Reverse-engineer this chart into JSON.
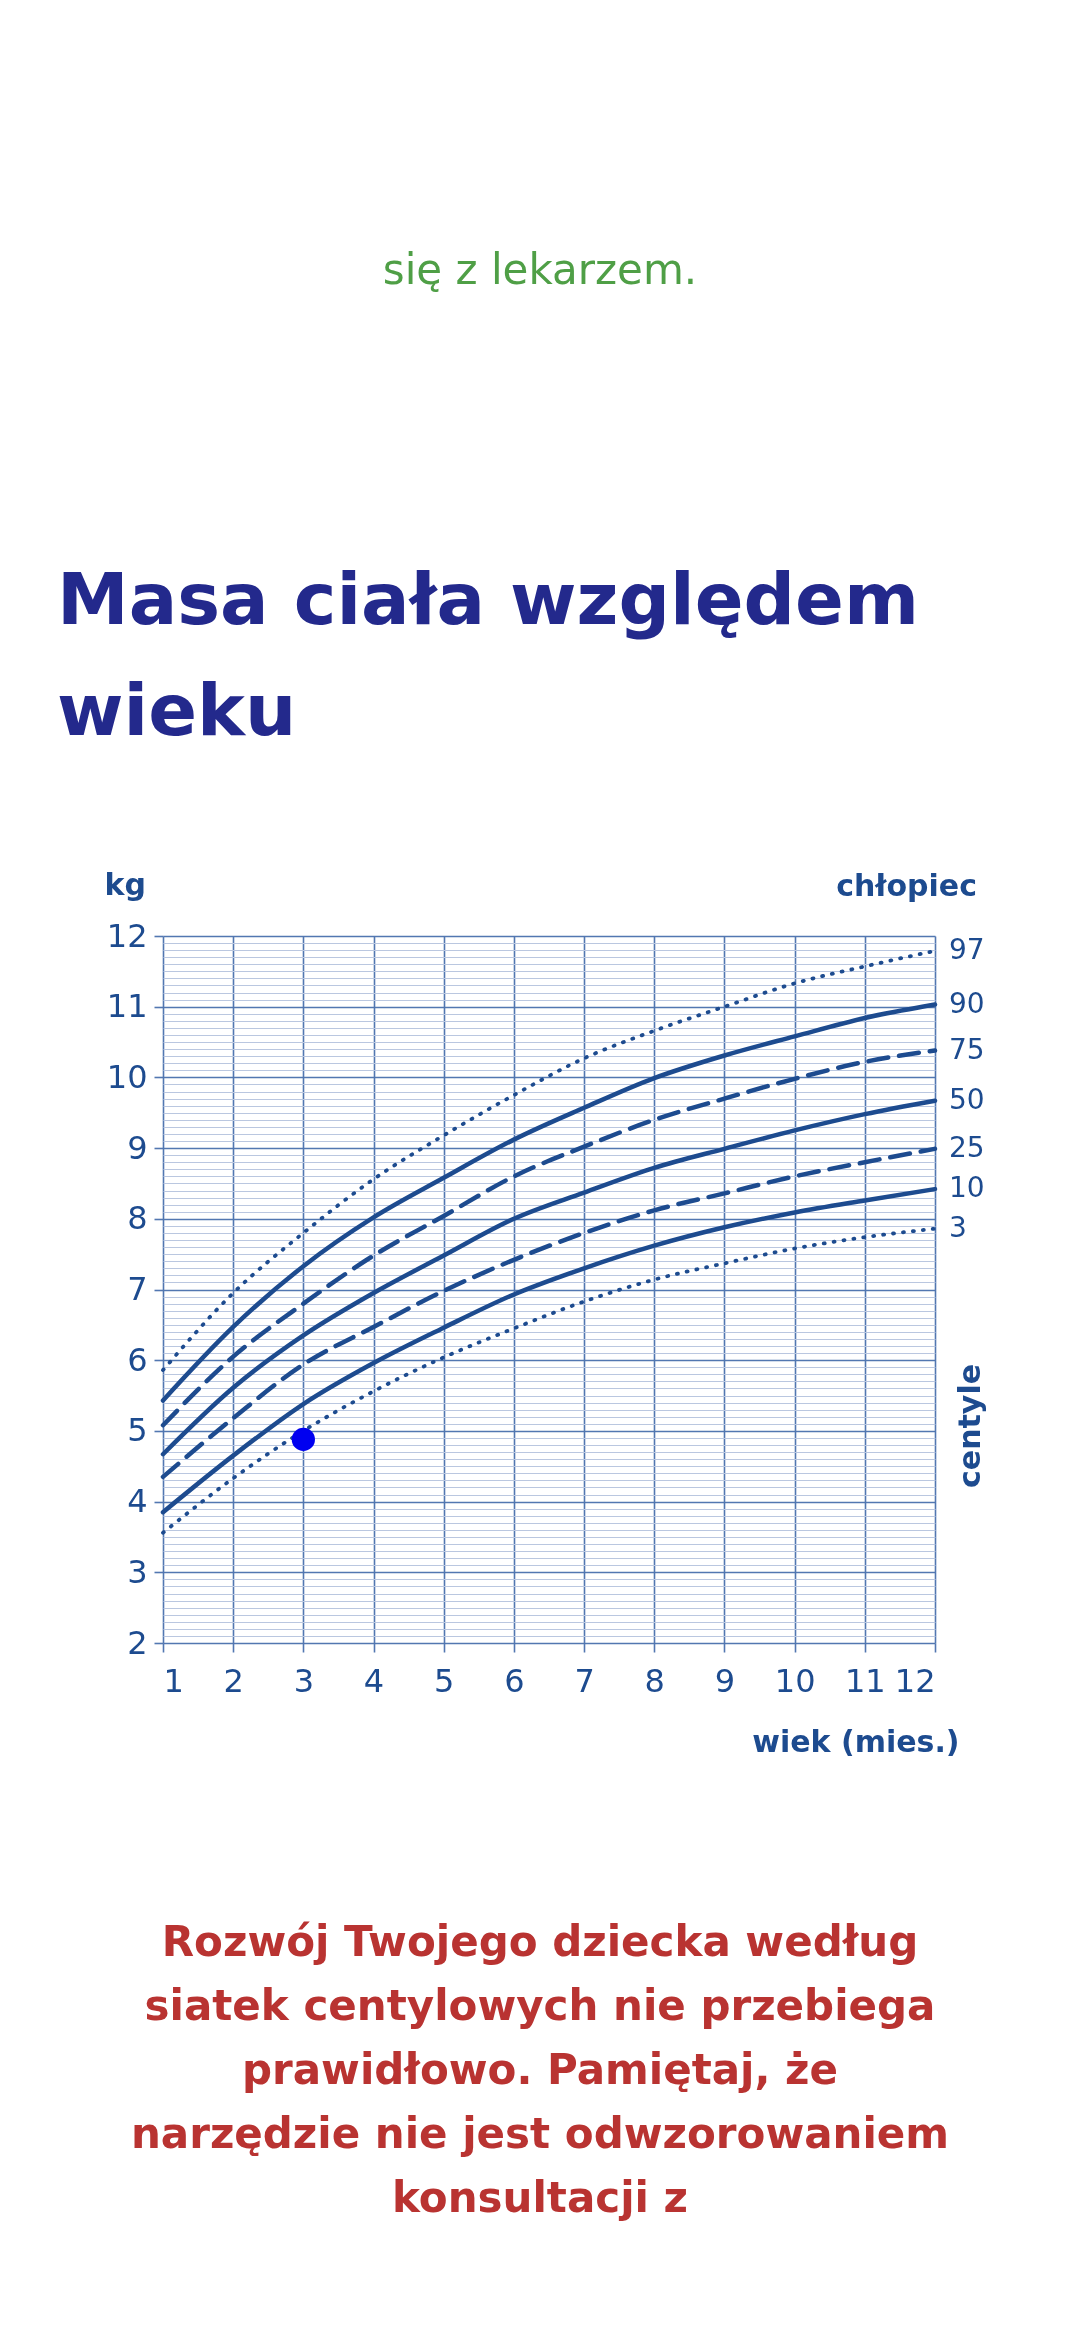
{
  "chart_data": {
    "type": "line",
    "title": "Masa ciała względem wieku",
    "xlabel": "wiek (mies.)",
    "ylabel": "kg",
    "annotations": [
      "chłopiec",
      "centyle",
      "się z lekarzem.",
      "Rozwój Twojego dziecka według siatek centylowych nie przebiega prawidłowo. Pamiętaj, że narzędzie nie jest odwzorowaniem konsultacji z"
    ],
    "x": [
      1,
      2,
      3,
      4,
      5,
      6,
      7,
      8,
      9,
      10,
      11,
      12
    ],
    "series": [
      {
        "name": "97",
        "color": "#1d4b8f",
        "line_style": "dotted",
        "values": [
          5.86,
          6.95,
          7.8,
          8.56,
          9.18,
          9.75,
          10.27,
          10.66,
          11.0,
          11.33,
          11.57,
          11.79
        ]
      },
      {
        "name": "90",
        "color": "#1d4b8f",
        "line_style": "solid",
        "values": [
          5.43,
          6.47,
          7.33,
          8.02,
          8.58,
          9.12,
          9.57,
          9.99,
          10.31,
          10.58,
          10.84,
          11.03
        ]
      },
      {
        "name": "75",
        "color": "#1d4b8f",
        "line_style": "dashed",
        "values": [
          5.08,
          6.05,
          6.8,
          7.48,
          8.04,
          8.6,
          9.02,
          9.4,
          9.7,
          9.98,
          10.22,
          10.38
        ]
      },
      {
        "name": "50",
        "color": "#1d4b8f",
        "line_style": "solid",
        "values": [
          4.67,
          5.61,
          6.35,
          6.95,
          7.48,
          8.0,
          8.37,
          8.72,
          8.99,
          9.25,
          9.48,
          9.67
        ]
      },
      {
        "name": "25",
        "color": "#1d4b8f",
        "line_style": "dashed",
        "values": [
          4.35,
          5.18,
          5.94,
          6.47,
          6.98,
          7.42,
          7.8,
          8.12,
          8.36,
          8.6,
          8.8,
          8.99
        ]
      },
      {
        "name": "10",
        "color": "#1d4b8f",
        "line_style": "solid",
        "values": [
          3.85,
          4.65,
          5.38,
          5.96,
          6.46,
          6.93,
          7.3,
          7.62,
          7.88,
          8.09,
          8.26,
          8.42
        ]
      },
      {
        "name": "3",
        "color": "#1d4b8f",
        "line_style": "dotted",
        "values": [
          3.56,
          4.33,
          5.0,
          5.56,
          6.04,
          6.45,
          6.83,
          7.14,
          7.37,
          7.58,
          7.74,
          7.86
        ]
      },
      {
        "type": "scatter",
        "x": [
          3
        ],
        "values": [
          4.88
        ],
        "color": "#0000f0",
        "marker": "circle"
      }
    ],
    "xlim": [
      1,
      12
    ],
    "xticks": [
      1,
      2,
      3,
      4,
      5,
      6,
      7,
      8,
      9,
      10,
      11,
      12
    ],
    "ylim": [
      2,
      12
    ],
    "yticks": [
      2,
      {
        "value": 2.1,
        "label": null
      },
      {
        "value": 2.2,
        "label": null
      },
      {
        "value": 2.3,
        "label": null
      },
      {
        "value": 2.4,
        "label": null
      },
      {
        "value": 2.5,
        "label": null
      },
      {
        "value": 2.6,
        "label": null
      },
      {
        "value": 2.7,
        "label": null
      },
      {
        "value": 2.8,
        "label": null
      },
      {
        "value": 2.9,
        "label": null
      },
      3,
      {
        "value": 3.1,
        "label": null
      },
      {
        "value": 3.2,
        "label": null
      },
      {
        "value": 3.3,
        "label": null
      },
      {
        "value": 3.4,
        "label": null
      },
      {
        "value": 3.5,
        "label": null
      },
      {
        "value": 3.6,
        "label": null
      },
      {
        "value": 3.7,
        "label": null
      },
      {
        "value": 3.8,
        "label": null
      },
      {
        "value": 3.9,
        "label": null
      },
      4,
      {
        "value": 4.1,
        "label": null
      },
      {
        "value": 4.2,
        "label": null
      },
      {
        "value": 4.3,
        "label": null
      },
      {
        "value": 4.4,
        "label": null
      },
      {
        "value": 4.5,
        "label": null
      },
      {
        "value": 4.6,
        "label": null
      },
      {
        "value": 4.7,
        "label": null
      },
      {
        "value": 4.8,
        "label": null
      },
      {
        "value": 4.9,
        "label": null
      },
      5,
      {
        "value": 5.1,
        "label": null
      },
      {
        "value": 5.2,
        "label": null
      },
      {
        "value": 5.3,
        "label": null
      },
      {
        "value": 5.4,
        "label": null
      },
      {
        "value": 5.5,
        "label": null
      },
      {
        "value": 5.6,
        "label": null
      },
      {
        "value": 5.7,
        "label": null
      },
      {
        "value": 5.8,
        "label": null
      },
      {
        "value": 5.9,
        "label": null
      },
      6,
      {
        "value": 6.1,
        "label": null
      },
      {
        "value": 6.2,
        "label": null
      },
      {
        "value": 6.3,
        "label": null
      },
      {
        "value": 6.4,
        "label": null
      },
      {
        "value": 6.5,
        "label": null
      },
      {
        "value": 6.6,
        "label": null
      },
      {
        "value": 6.7,
        "label": null
      },
      {
        "value": 6.8,
        "label": null
      },
      {
        "value": 6.9,
        "label": null
      },
      7,
      {
        "value": 7.1,
        "label": null
      },
      {
        "value": 7.2,
        "label": null
      },
      {
        "value": 7.3,
        "label": null
      },
      {
        "value": 7.4,
        "label": null
      },
      {
        "value": 7.5,
        "label": null
      },
      {
        "value": 7.6,
        "label": null
      },
      {
        "value": 7.7,
        "label": null
      },
      {
        "value": 7.8,
        "label": null
      },
      {
        "value": 7.9,
        "label": null
      },
      8,
      {
        "value": 8.1,
        "label": null
      },
      {
        "value": 8.2,
        "label": null
      },
      {
        "value": 8.3,
        "label": null
      },
      {
        "value": 8.4,
        "label": null
      },
      {
        "value": 8.5,
        "label": null
      },
      {
        "value": 8.6,
        "label": null
      },
      {
        "value": 8.7,
        "label": null
      },
      {
        "value": 8.8,
        "label": null
      },
      {
        "value": 8.9,
        "label": null
      },
      9,
      {
        "value": 9.1,
        "label": null
      },
      {
        "value": 9.2,
        "label": null
      },
      {
        "value": 9.3,
        "label": null
      },
      {
        "value": 9.4,
        "label": null
      },
      {
        "value": 9.5,
        "label": null
      },
      {
        "value": 9.6,
        "label": null
      },
      {
        "value": 9.7,
        "label": null
      },
      {
        "value": 9.8,
        "label": null
      },
      {
        "value": 9.9,
        "label": null
      },
      10,
      {
        "value": 10.1,
        "label": null
      },
      {
        "value": 10.2,
        "label": null
      },
      {
        "value": 10.3,
        "label": null
      },
      {
        "value": 10.4,
        "label": null
      },
      {
        "value": 10.5,
        "label": null
      },
      {
        "value": 10.6,
        "label": null
      },
      {
        "value": 10.7,
        "label": null
      },
      {
        "value": 10.8,
        "label": null
      },
      {
        "value": 10.9,
        "label": null
      },
      11,
      {
        "value": 11.1,
        "label": null
      },
      {
        "value": 11.2,
        "label": null
      },
      {
        "value": 11.3,
        "label": null
      },
      {
        "value": 11.4,
        "label": null
      },
      {
        "value": 11.5,
        "label": null
      },
      {
        "value": 11.6,
        "label": null
      },
      {
        "value": 11.7,
        "label": null
      },
      {
        "value": 11.8,
        "label": null
      },
      {
        "value": 11.9,
        "label": null
      },
      12
    ],
    "grid": true
  }
}
